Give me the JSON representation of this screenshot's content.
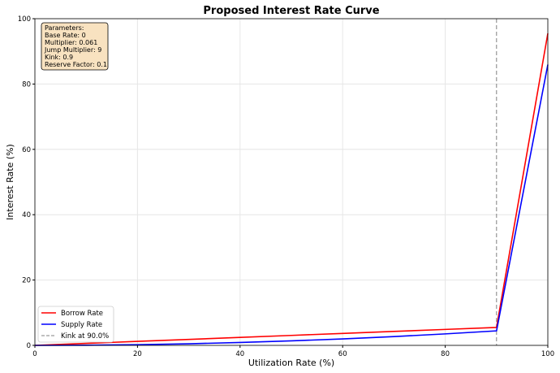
{
  "chart_data": {
    "type": "line",
    "title": "Proposed Interest Rate Curve",
    "xlabel": "Utilization Rate (%)",
    "ylabel": "Interest Rate (%)",
    "xlim": [
      0,
      100
    ],
    "ylim": [
      0,
      100
    ],
    "grid": true,
    "xticks": [
      0,
      20,
      40,
      60,
      80,
      100
    ],
    "yticks": [
      0,
      20,
      40,
      60,
      80,
      100
    ],
    "x": [
      0,
      10,
      20,
      30,
      40,
      50,
      60,
      70,
      80,
      90,
      100
    ],
    "series": [
      {
        "name": "Borrow Rate",
        "color": "#ff0000",
        "values": [
          0,
          0.61,
          1.22,
          1.83,
          2.44,
          3.05,
          3.66,
          4.27,
          4.88,
          5.49,
          95.49
        ]
      },
      {
        "name": "Supply Rate",
        "color": "#0000ff",
        "values": [
          0,
          0.055,
          0.22,
          0.494,
          0.878,
          1.373,
          1.976,
          2.69,
          3.514,
          4.447,
          85.94
        ]
      }
    ],
    "kink": {
      "x": 90,
      "label": "Kink at 90.0%",
      "color": "#808080"
    },
    "legend_placement": "lower-left",
    "annotation": [
      "Parameters:",
      "Base Rate: 0",
      "Multiplier: 0.061",
      "Jump Multiplier: 9",
      "Kink: 0.9",
      "Reserve Factor: 0.1"
    ]
  }
}
